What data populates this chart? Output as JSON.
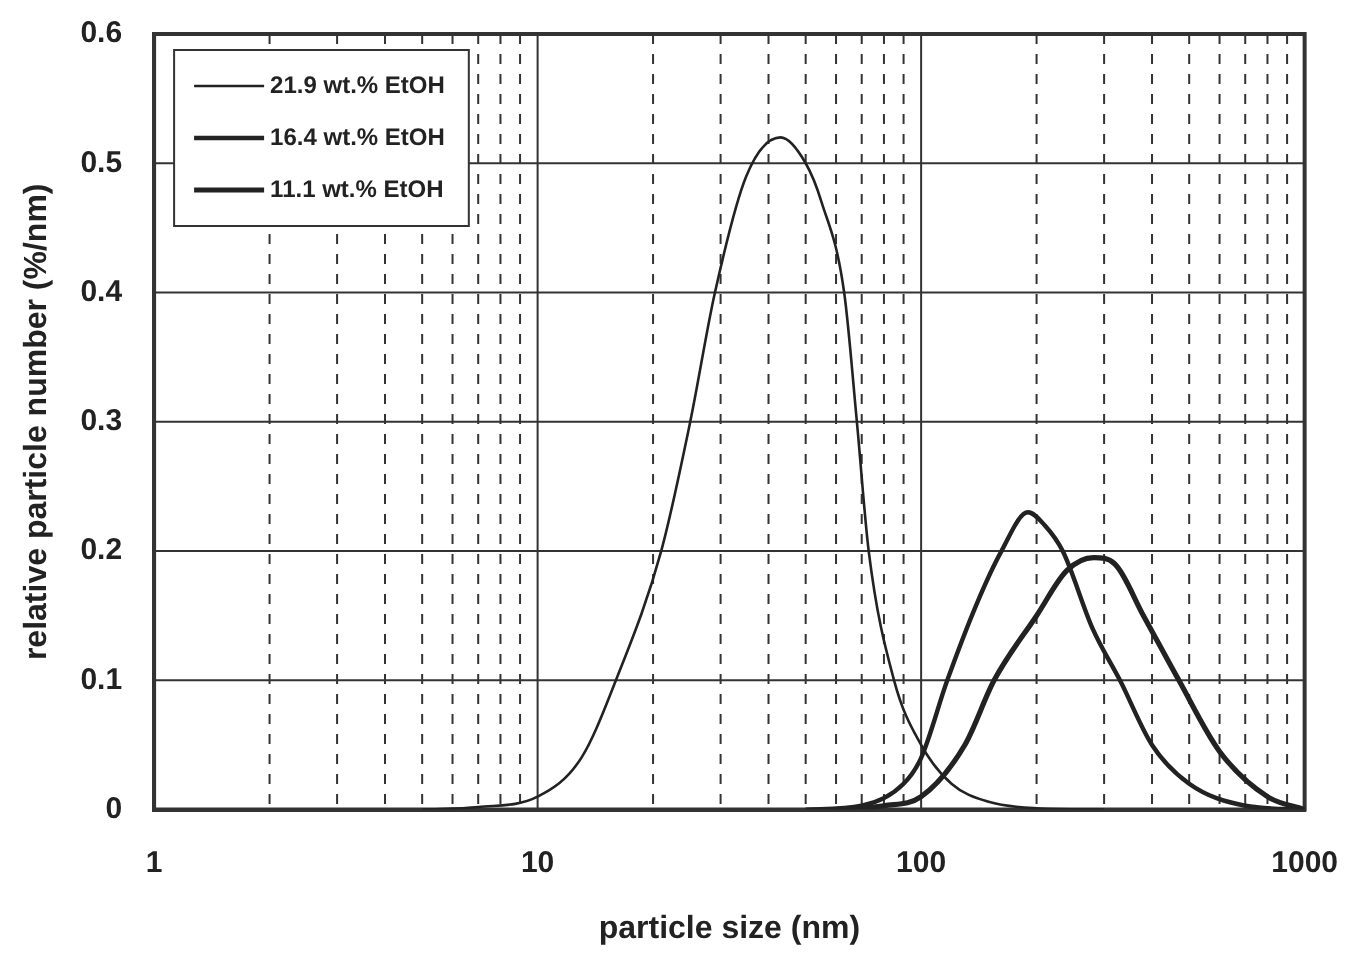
{
  "chart_data": {
    "type": "line",
    "xlabel": "particle size (nm)",
    "ylabel": "relative particle number (%/nm)",
    "log": "x",
    "grid": true,
    "legend": "top left",
    "marker": "none",
    "line_style": "solid",
    "xlim": [
      1,
      1000
    ],
    "xticks": [
      1,
      {
        "value": 2,
        "label": null
      },
      {
        "value": 3,
        "label": null
      },
      {
        "value": 4,
        "label": null
      },
      {
        "value": 5,
        "label": null
      },
      {
        "value": 6,
        "label": null
      },
      {
        "value": 7,
        "label": null
      },
      {
        "value": 8,
        "label": null
      },
      {
        "value": 9,
        "label": null
      },
      10,
      {
        "value": 20,
        "label": null
      },
      {
        "value": 30,
        "label": null
      },
      {
        "value": 40,
        "label": null
      },
      {
        "value": 50,
        "label": null
      },
      {
        "value": 60,
        "label": null
      },
      {
        "value": 70,
        "label": null
      },
      {
        "value": 80,
        "label": null
      },
      {
        "value": 90,
        "label": null
      },
      100,
      {
        "value": 200,
        "label": null
      },
      {
        "value": 300,
        "label": null
      },
      {
        "value": 400,
        "label": null
      },
      {
        "value": 500,
        "label": null
      },
      {
        "value": 600,
        "label": null
      },
      {
        "value": 700,
        "label": null
      },
      {
        "value": 800,
        "label": null
      },
      {
        "value": 900,
        "label": null
      },
      1000
    ],
    "ylim": [
      0,
      0.6
    ],
    "yticks": [
      {
        "value": 0,
        "label": "0"
      },
      0.1,
      0.2,
      0.3,
      0.4,
      0.5,
      0.6
    ],
    "series": [
      {
        "name": "21.9 wt.% EtOH",
        "color": "#222222",
        "x": [
          5,
          7,
          10,
          13,
          16,
          21,
          25,
          29,
          35,
          43,
          50,
          55,
          63,
          68,
          73,
          85,
          100,
          120,
          150,
          200,
          300
        ],
        "values": [
          0,
          0.002,
          0.01,
          0.04,
          0.1,
          0.2,
          0.3,
          0.4,
          0.49,
          0.52,
          0.5,
          0.47,
          0.4,
          0.3,
          0.2,
          0.1,
          0.05,
          0.02,
          0.006,
          0.001,
          0
        ]
      },
      {
        "name": "16.4 wt.% EtOH",
        "color": "#222222",
        "x": [
          50,
          70,
          90,
          100,
          117,
          140,
          162,
          190,
          210,
          234,
          280,
          330,
          400,
          500,
          700,
          1000
        ],
        "values": [
          0,
          0.003,
          0.02,
          0.04,
          0.1,
          0.16,
          0.2,
          0.23,
          0.22,
          0.2,
          0.14,
          0.1,
          0.05,
          0.02,
          0.003,
          0
        ]
      },
      {
        "name": "11.1 wt.% EtOH",
        "color": "#222222",
        "x": [
          60,
          80,
          100,
          130,
          155,
          200,
          240,
          282,
          320,
          380,
          470,
          600,
          800,
          1000
        ],
        "values": [
          0,
          0.003,
          0.01,
          0.05,
          0.1,
          0.15,
          0.185,
          0.195,
          0.19,
          0.15,
          0.1,
          0.045,
          0.01,
          0
        ]
      }
    ]
  }
}
